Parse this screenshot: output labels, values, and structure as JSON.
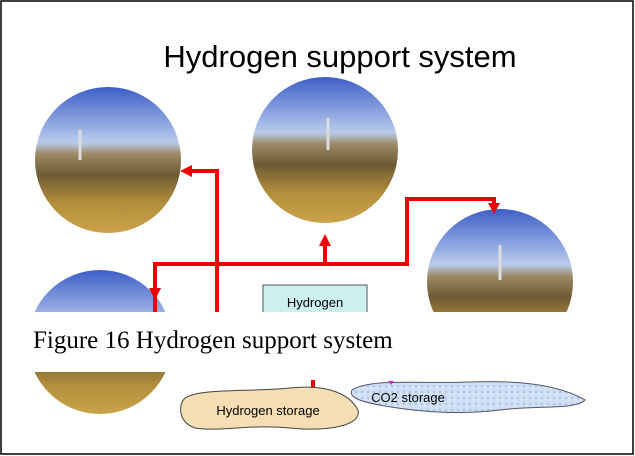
{
  "title": "Hydrogen support system",
  "box_label": "Hydrogen",
  "caption": "Figure 16 Hydrogen support system",
  "storage": {
    "hydrogen": "Hydrogen storage",
    "co2": "CO2 storage"
  }
}
